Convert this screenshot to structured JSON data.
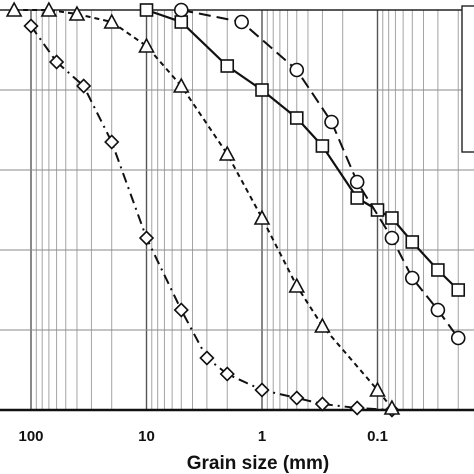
{
  "chart_data": {
    "type": "line",
    "title": "",
    "xlabel": "Grain size  (mm)",
    "ylabel": "",
    "x_scale": "log",
    "x_reversed": true,
    "xlim": [
      150,
      0.02
    ],
    "ylim": [
      0,
      100
    ],
    "grid": true,
    "x_ticks": [
      {
        "value": 100,
        "label": "100"
      },
      {
        "value": 10,
        "label": "10"
      },
      {
        "value": 1,
        "label": "1"
      },
      {
        "value": 0.1,
        "label": "0.1"
      }
    ],
    "series": [
      {
        "marker": "diamond",
        "line_style": "dash-dot",
        "x": [
          100,
          60,
          35,
          20,
          10,
          5,
          3,
          2,
          1,
          0.5,
          0.3,
          0.15,
          0.075
        ],
        "values": [
          96,
          87,
          81,
          67,
          43,
          25,
          13,
          9,
          5,
          3,
          1.5,
          0.5,
          0
        ]
      },
      {
        "marker": "triangle",
        "line_style": "dashed",
        "x": [
          140,
          70,
          40,
          20,
          10,
          5,
          2,
          1,
          0.5,
          0.3,
          0.1,
          0.075
        ],
        "values": [
          100,
          100,
          99,
          97,
          91,
          81,
          64,
          48,
          31,
          21,
          5,
          0.5
        ]
      },
      {
        "marker": "square",
        "line_style": "solid",
        "x": [
          10,
          5,
          2,
          1,
          0.5,
          0.3,
          0.15,
          0.1,
          0.075,
          0.05,
          0.03,
          0.02
        ],
        "values": [
          100,
          97,
          86,
          80,
          73,
          66,
          53,
          50,
          48,
          42,
          35,
          30
        ]
      },
      {
        "marker": "circle",
        "line_style": "long-dash",
        "x": [
          5,
          1.5,
          0.5,
          0.25,
          0.15,
          0.075,
          0.05,
          0.03,
          0.02
        ],
        "values": [
          100,
          97,
          85,
          72,
          57,
          43,
          33,
          25,
          18
        ]
      }
    ]
  }
}
